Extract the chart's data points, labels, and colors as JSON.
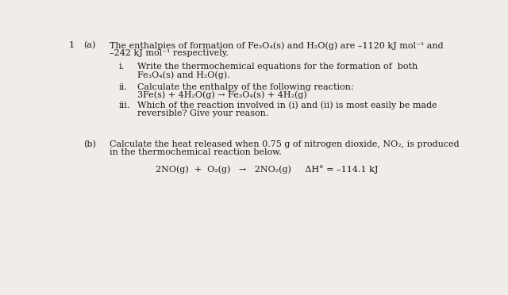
{
  "background_color": "#f0ede8",
  "question_number": "1",
  "part_a_label": "(a)",
  "part_b_label": "(b)",
  "intro_line1": "The enthalpies of formation of Fe₃O₄(s) and H₂O(g) are –1120 kJ mol⁻¹ and",
  "intro_line2": "–242 kJ mol⁻¹ respectively.",
  "roman_i": "i.",
  "roman_ii": "ii.",
  "roman_iii": "iii.",
  "part_i_line1": "Write the thermochemical equations for the formation of  both",
  "part_i_line2": "Fe₃O₄(s) and H₂O(g).",
  "part_ii_line1": "Calculate the enthalpy of the following reaction:",
  "part_ii_reaction": "3Fe(s) + 4H₂O(g) → Fe₃O₄(s) + 4H₂(g)",
  "part_iii_line1": "Which of the reaction involved in (i) and (ii) is most easily be made",
  "part_iii_line2": "reversible? Give your reason.",
  "part_b_line1": "Calculate the heat released when 0.75 g of nitrogen dioxide, NO₂, is produced",
  "part_b_line2": "in the thermochemical reaction below.",
  "part_b_reaction": "2NO(g)  +  O₂(g)   →   2NO₂(g)     ΔH° = –114.1 kJ",
  "font_size": 8.0,
  "text_color": "#1a1a1a"
}
